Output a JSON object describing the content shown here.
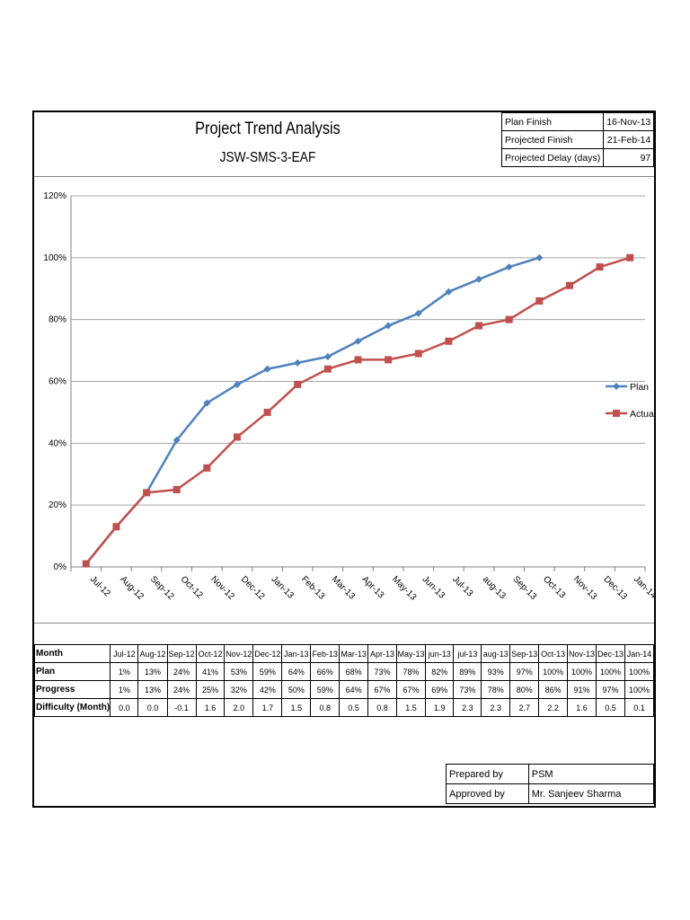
{
  "report": {
    "title": "Project Trend Analysis",
    "subtitle": "JSW-SMS-3-EAF"
  },
  "summary": [
    {
      "label": "Plan Finish",
      "value": "16-Nov-13"
    },
    {
      "label": "Projected Finish",
      "value": "21-Feb-14"
    },
    {
      "label": "Projected Delay (days)",
      "value": "97"
    }
  ],
  "colors": {
    "plan": "#4f81bd",
    "actual": "#c0504d",
    "grid": "#a6a6a6"
  },
  "chart_data": {
    "type": "line",
    "categories": [
      "Jul-12",
      "Aug-12",
      "Sep-12",
      "Oct-12",
      "Nov-12",
      "Dec-12",
      "Jan-13",
      "Feb-13",
      "Mar-13",
      "Apr-13",
      "May-13",
      "Jun-13",
      "Jul-13",
      "aug-13",
      "Sep-13",
      "Oct-13",
      "Nov-13",
      "Dec-13",
      "Jan-14"
    ],
    "series": [
      {
        "name": "Plan",
        "marker": "diamond",
        "color": "#4f81bd",
        "values": [
          1,
          13,
          24,
          41,
          53,
          59,
          64,
          66,
          68,
          73,
          78,
          82,
          89,
          93,
          97,
          100,
          null,
          null,
          null
        ]
      },
      {
        "name": "Actual",
        "marker": "square",
        "color": "#c0504d",
        "values": [
          1,
          13,
          24,
          25,
          32,
          42,
          50,
          59,
          64,
          67,
          67,
          69,
          73,
          78,
          80,
          86,
          91,
          97,
          100
        ]
      }
    ],
    "yticks": [
      "0%",
      "20%",
      "40%",
      "60%",
      "80%",
      "100%",
      "120%"
    ],
    "ylim": [
      0,
      120
    ],
    "grid": true,
    "legend_position": "right"
  },
  "table": {
    "header_label": "Month",
    "months": [
      "Jul-12",
      "Aug-12",
      "Sep-12",
      "Oct-12",
      "Nov-12",
      "Dec-12",
      "Jan-13",
      "Feb-13",
      "Mar-13",
      "Apr-13",
      "May-13",
      "jun-13",
      "jul-13",
      "aug-13",
      "Sep-13",
      "Oct-13",
      "Nov-13",
      "Dec-13",
      "Jan-14"
    ],
    "rows": [
      {
        "label": "Plan",
        "values": [
          "1%",
          "13%",
          "24%",
          "41%",
          "53%",
          "59%",
          "64%",
          "66%",
          "68%",
          "73%",
          "78%",
          "82%",
          "89%",
          "93%",
          "97%",
          "100%",
          "100%",
          "100%",
          "100%"
        ]
      },
      {
        "label": "Progress",
        "values": [
          "1%",
          "13%",
          "24%",
          "25%",
          "32%",
          "42%",
          "50%",
          "59%",
          "64%",
          "67%",
          "67%",
          "69%",
          "73%",
          "78%",
          "80%",
          "86%",
          "91%",
          "97%",
          "100%"
        ]
      },
      {
        "label": "Difficulty (Month)",
        "values": [
          "0.0",
          "0.0",
          "-0.1",
          "1.6",
          "2.0",
          "1.7",
          "1.5",
          "0.8",
          "0.5",
          "0.8",
          "1.5",
          "1.9",
          "2.3",
          "2.3",
          "2.7",
          "2.2",
          "1.6",
          "0.5",
          "0.1"
        ]
      }
    ]
  },
  "signoff": [
    {
      "label": "Prepared by",
      "value": "PSM"
    },
    {
      "label": "Approved by",
      "value": "Mr. Sanjeev Sharma"
    }
  ]
}
